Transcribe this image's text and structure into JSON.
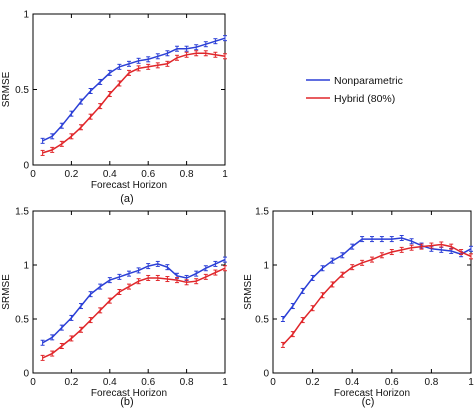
{
  "legend": {
    "entries": [
      {
        "label": "Nonparametric",
        "color": "#2b3fd6"
      },
      {
        "label": "Hybrid (80%)",
        "color": "#e0262a"
      }
    ]
  },
  "colors": {
    "nonparametric": "#2b3fd6",
    "hybrid": "#e0262a",
    "axis": "#000000"
  },
  "chart_data": [
    {
      "type": "line",
      "panel_label": "(a)",
      "xlabel": "Forecast Horizon",
      "ylabel": "SRMSE",
      "xlim": [
        0,
        1
      ],
      "ylim": [
        0,
        1
      ],
      "xticks": [
        "0",
        "0.2",
        "0.4",
        "0.6",
        "0.8",
        "1"
      ],
      "yticks": [
        "0",
        "0.5",
        "1"
      ],
      "x": [
        0.05,
        0.1,
        0.15,
        0.2,
        0.25,
        0.3,
        0.35,
        0.4,
        0.45,
        0.5,
        0.55,
        0.6,
        0.65,
        0.7,
        0.75,
        0.8,
        0.85,
        0.9,
        0.95,
        1.0
      ],
      "series": [
        {
          "name": "Nonparametric",
          "values": [
            0.16,
            0.19,
            0.26,
            0.34,
            0.42,
            0.49,
            0.55,
            0.61,
            0.65,
            0.67,
            0.69,
            0.7,
            0.72,
            0.74,
            0.77,
            0.77,
            0.78,
            0.8,
            0.82,
            0.84
          ]
        },
        {
          "name": "Hybrid (80%)",
          "values": [
            0.08,
            0.1,
            0.14,
            0.19,
            0.25,
            0.32,
            0.39,
            0.47,
            0.54,
            0.61,
            0.64,
            0.65,
            0.66,
            0.67,
            0.71,
            0.73,
            0.74,
            0.74,
            0.73,
            0.72
          ]
        }
      ]
    },
    {
      "type": "line",
      "panel_label": "(b)",
      "xlabel": "Forecast Horizon",
      "ylabel": "SRMSE",
      "xlim": [
        0,
        1
      ],
      "ylim": [
        0,
        1.5
      ],
      "xticks": [
        "0",
        "0.2",
        "0.4",
        "0.6",
        "0.8",
        "1"
      ],
      "yticks": [
        "0",
        "0.5",
        "1",
        "1.5"
      ],
      "x": [
        0.05,
        0.1,
        0.15,
        0.2,
        0.25,
        0.3,
        0.35,
        0.4,
        0.45,
        0.5,
        0.55,
        0.6,
        0.65,
        0.7,
        0.75,
        0.8,
        0.85,
        0.9,
        0.95,
        1.0
      ],
      "series": [
        {
          "name": "Nonparametric",
          "values": [
            0.28,
            0.33,
            0.42,
            0.51,
            0.62,
            0.73,
            0.8,
            0.86,
            0.89,
            0.92,
            0.95,
            0.99,
            1.01,
            0.98,
            0.9,
            0.88,
            0.92,
            0.97,
            1.01,
            1.05
          ]
        },
        {
          "name": "Hybrid (80%)",
          "values": [
            0.14,
            0.18,
            0.25,
            0.32,
            0.4,
            0.49,
            0.58,
            0.67,
            0.75,
            0.8,
            0.85,
            0.88,
            0.88,
            0.87,
            0.86,
            0.84,
            0.85,
            0.89,
            0.93,
            0.97
          ]
        }
      ]
    },
    {
      "type": "line",
      "panel_label": "(c)",
      "xlabel": "Forecast Horizon",
      "ylabel": "SRMSE",
      "xlim": [
        0,
        1
      ],
      "ylim": [
        0,
        1.5
      ],
      "xticks": [
        "0",
        "0.2",
        "0.4",
        "0.6",
        "0.8",
        "1"
      ],
      "yticks": [
        "0",
        "0.5",
        "1",
        "1.5"
      ],
      "x": [
        0.05,
        0.1,
        0.15,
        0.2,
        0.25,
        0.3,
        0.35,
        0.4,
        0.45,
        0.5,
        0.55,
        0.6,
        0.65,
        0.7,
        0.75,
        0.8,
        0.85,
        0.9,
        0.95,
        1.0
      ],
      "series": [
        {
          "name": "Nonparametric",
          "values": [
            0.5,
            0.62,
            0.76,
            0.88,
            0.97,
            1.04,
            1.09,
            1.17,
            1.24,
            1.24,
            1.24,
            1.24,
            1.25,
            1.22,
            1.18,
            1.15,
            1.14,
            1.13,
            1.1,
            1.15
          ]
        },
        {
          "name": "Hybrid (80%)",
          "values": [
            0.26,
            0.36,
            0.49,
            0.6,
            0.72,
            0.82,
            0.91,
            0.98,
            1.02,
            1.05,
            1.09,
            1.12,
            1.14,
            1.16,
            1.17,
            1.18,
            1.19,
            1.17,
            1.12,
            1.08
          ]
        }
      ]
    }
  ]
}
